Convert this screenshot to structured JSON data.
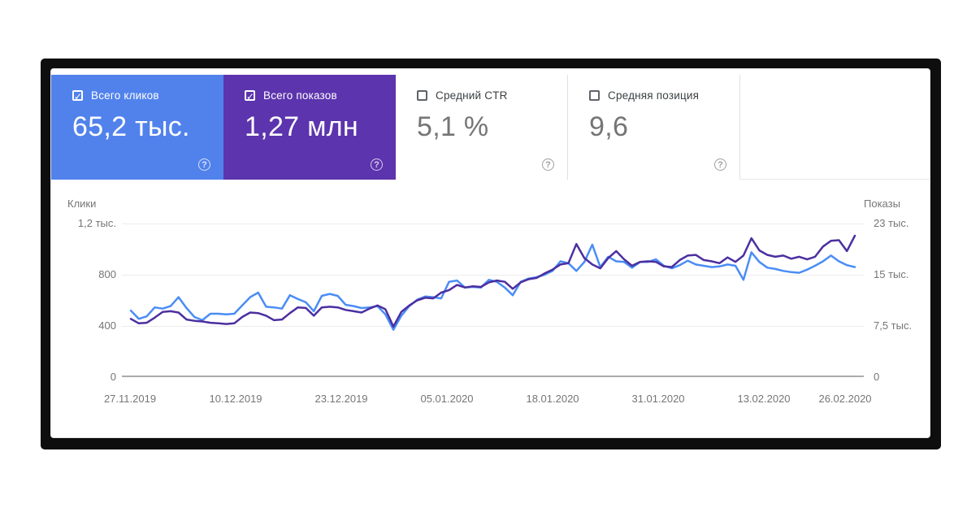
{
  "cards": [
    {
      "label": "Всего кликов",
      "value": "65,2 тыс.",
      "checked": true,
      "bg": "#5182ec",
      "fg": "#ffffff",
      "help": "?"
    },
    {
      "label": "Всего показов",
      "value": "1,27 млн",
      "checked": true,
      "bg": "#5c34ad",
      "fg": "#ffffff",
      "help": "?"
    },
    {
      "label": "Средний CTR",
      "value": "5,1 %",
      "checked": false,
      "bg": "#ffffff",
      "fg": "#3c4043",
      "help": "?"
    },
    {
      "label": "Средняя позиция",
      "value": "9,6",
      "checked": false,
      "bg": "#ffffff",
      "fg": "#3c4043",
      "help": "?"
    }
  ],
  "chart_data": {
    "type": "line",
    "title": "",
    "grid": "horizontal",
    "x_tick_labels": [
      "27.11.2019",
      "10.12.2019",
      "23.12.2019",
      "05.01.2020",
      "18.01.2020",
      "31.01.2020",
      "13.02.2020",
      "26.02.2020"
    ],
    "left_axis": {
      "label": "Клики",
      "ticks": [
        "1,2 тыс.",
        "800",
        "400",
        "0"
      ],
      "max": 1200
    },
    "right_axis": {
      "label": "Показы",
      "ticks": [
        "23 тыс.",
        "15 тыс.",
        "7,5 тыс.",
        "0"
      ],
      "max": 22500
    },
    "series": [
      {
        "name": "Клики",
        "axis": "left",
        "color": "#4a8df5",
        "values": [
          520,
          455,
          475,
          545,
          535,
          555,
          625,
          540,
          470,
          445,
          495,
          495,
          490,
          495,
          560,
          625,
          660,
          550,
          545,
          535,
          640,
          610,
          585,
          515,
          635,
          650,
          635,
          565,
          555,
          540,
          545,
          555,
          490,
          370,
          480,
          555,
          605,
          630,
          625,
          615,
          745,
          755,
          700,
          705,
          700,
          760,
          745,
          700,
          640,
          745,
          770,
          780,
          800,
          830,
          905,
          890,
          830,
          900,
          1035,
          860,
          940,
          905,
          900,
          855,
          900,
          900,
          920,
          870,
          850,
          875,
          910,
          880,
          870,
          860,
          865,
          880,
          870,
          760,
          975,
          900,
          855,
          845,
          830,
          820,
          815,
          840,
          870,
          905,
          950,
          905,
          875,
          860
        ]
      },
      {
        "name": "Показы",
        "axis": "right",
        "color": "#4c2fa0",
        "values": [
          8530,
          7880,
          7970,
          8720,
          9560,
          9660,
          9470,
          8440,
          8250,
          8160,
          7970,
          7880,
          7780,
          7880,
          8810,
          9470,
          9380,
          9000,
          8340,
          8440,
          9380,
          10220,
          10130,
          9000,
          10220,
          10310,
          10220,
          9840,
          9660,
          9470,
          10030,
          10500,
          9940,
          7410,
          9560,
          10500,
          11250,
          11630,
          11530,
          12380,
          12750,
          13500,
          13130,
          13310,
          13220,
          13880,
          14160,
          13970,
          12940,
          13880,
          14340,
          14530,
          15190,
          15750,
          16500,
          16690,
          19500,
          17440,
          16500,
          15940,
          17440,
          18470,
          17250,
          16310,
          16880,
          16970,
          16880,
          16220,
          16130,
          17160,
          17810,
          17910,
          17160,
          16970,
          16690,
          17530,
          16880,
          17810,
          20340,
          18560,
          17910,
          17630,
          17810,
          17340,
          17630,
          17250,
          17630,
          19130,
          19970,
          20060,
          18470,
          20720
        ]
      }
    ],
    "colors": {
      "grid_line": "#ececec",
      "axis_line": "#ababab",
      "tick_text": "#757575"
    }
  }
}
